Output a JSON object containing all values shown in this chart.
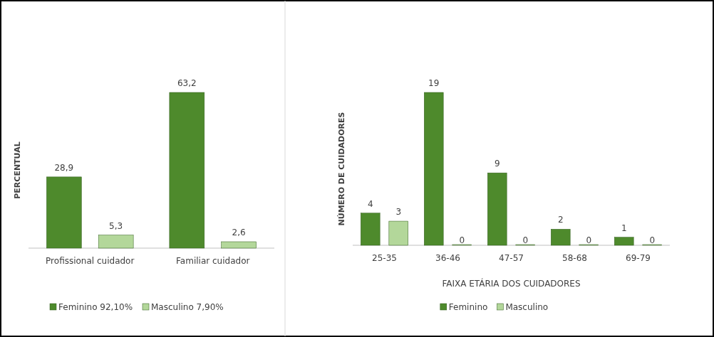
{
  "chart_data": [
    {
      "type": "bar",
      "ylabel": "PERCENTUAL",
      "categories": [
        "Profissional cuidador",
        "Familiar cuidador"
      ],
      "legend": "bottom",
      "series": [
        {
          "name": "Feminino 92,10%",
          "color": "#4e8a2c",
          "values": [
            28.9,
            63.2
          ],
          "value_labels": [
            "28,9",
            "63,2"
          ]
        },
        {
          "name": "Masculino 7,90%",
          "color": "#b3d79a",
          "values": [
            5.3,
            2.6
          ],
          "value_labels": [
            "5,3",
            "2,6"
          ]
        }
      ]
    },
    {
      "type": "bar",
      "xlabel": "FAIXA ETÁRIA DOS CUIDADORES",
      "ylabel": "NÚMERO DE CUIDADORES",
      "categories": [
        "25-35",
        "36-46",
        "47-57",
        "58-68",
        "69-79"
      ],
      "legend": "bottom",
      "data_labels": true,
      "series": [
        {
          "name": "Feminino",
          "color": "#4e8a2c",
          "values": [
            4,
            19,
            9,
            2,
            1
          ]
        },
        {
          "name": "Masculino",
          "color": "#b3d79a",
          "values": [
            3,
            0,
            0,
            0,
            0
          ]
        }
      ]
    }
  ]
}
